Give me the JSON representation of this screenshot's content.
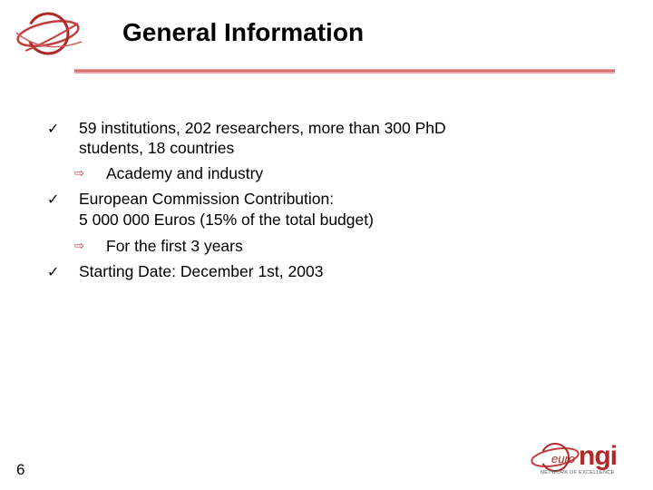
{
  "slide": {
    "title": "General Information",
    "page_number": "6"
  },
  "bullets": [
    {
      "lines": [
        "59 institutions, 202 researchers, more than 300 PhD",
        "students, 18 countries"
      ],
      "sub": "Academy and industry"
    },
    {
      "lines": [
        "European Commission Contribution:",
        "5 000 000 Euros (15% of the total budget)"
      ],
      "sub": "For the first 3 years"
    },
    {
      "lines": [
        "Starting Date: December 1st, 2003"
      ]
    }
  ],
  "logo": {
    "euro": "euro",
    "ngi": "ngi",
    "tagline": "NETWORK OF EXCELLENCE"
  },
  "colors": {
    "accent": "#b02828",
    "rule": "#d97070"
  },
  "icons": {
    "bullet": "check-icon",
    "sub_bullet": "hollow-arrow-icon"
  }
}
